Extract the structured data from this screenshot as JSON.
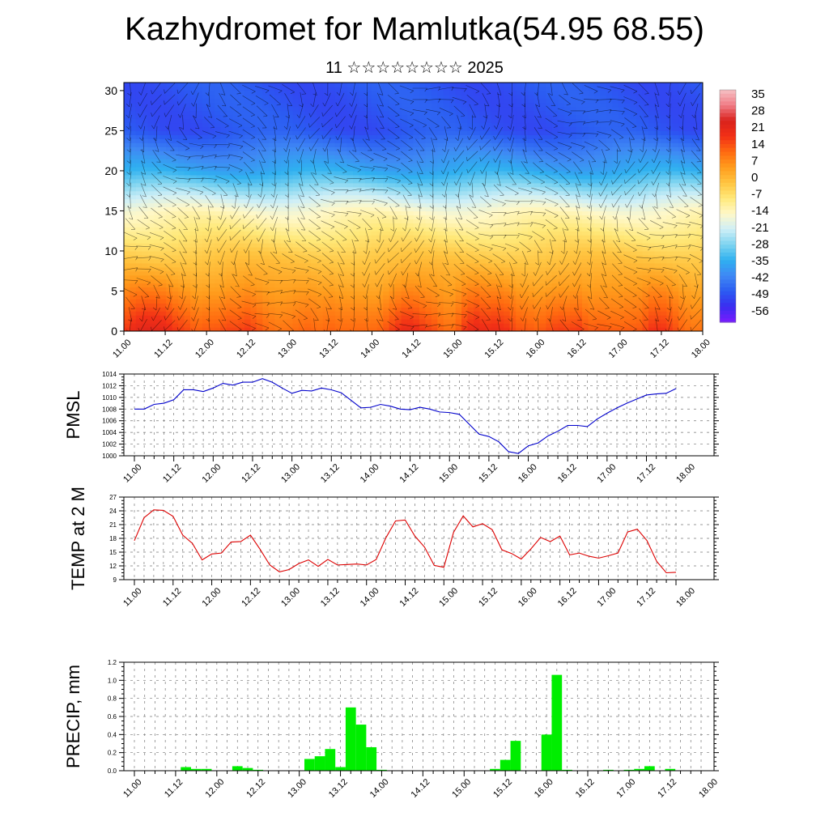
{
  "title": "Kazhydromet for Mamlutka(54.95 68.55)",
  "subtitle": "11 ☆☆☆☆☆☆☆☆ 2025",
  "chart_data": [
    {
      "type": "heatmap",
      "name": "temperature-height-section",
      "x_ticks": [
        "11.00",
        "11.12",
        "12.00",
        "12.12",
        "13.00",
        "13.12",
        "14.00",
        "14.12",
        "15.00",
        "15.12",
        "16.00",
        "16.12",
        "17.00",
        "17.12",
        "18.00"
      ],
      "ylim": [
        0,
        31
      ],
      "y_ticks": [
        0,
        5,
        10,
        15,
        20,
        25,
        30
      ],
      "colorbar": {
        "levels": [
          35,
          28,
          21,
          14,
          7,
          0,
          -7,
          -14,
          -21,
          -28,
          -35,
          -42,
          -49,
          -56
        ],
        "range": [
          -63,
          42
        ],
        "colors": [
          "#7a1cff",
          "#3a2df0",
          "#2b5cf2",
          "#3f88f4",
          "#2fb0f0",
          "#7ed4f0",
          "#cfeff7",
          "#fff8c8",
          "#ffe97a",
          "#ffc440",
          "#ff9c1c",
          "#ff6a10",
          "#f23016",
          "#d9221c",
          "#f07c86",
          "#f6c0c4"
        ]
      },
      "profile_ylevels": [
        0,
        5,
        10,
        15,
        20,
        25,
        31
      ],
      "profile_temps": [
        18,
        8,
        -2,
        -14,
        -36,
        -50,
        -50
      ],
      "surface_temp_key": "temp2m",
      "has_wind_barbs": true
    },
    {
      "type": "line",
      "name": "PMSL",
      "ylabel": "PMSL",
      "ylim": [
        1000,
        1014
      ],
      "y_ticks": [
        1000,
        1002,
        1004,
        1006,
        1008,
        1010,
        1012,
        1014
      ],
      "x_ticks": [
        "11.00",
        "11.12",
        "12.00",
        "12.12",
        "13.00",
        "13.12",
        "14.00",
        "14.12",
        "15.00",
        "15.12",
        "16.00",
        "16.12",
        "17.00",
        "17.12",
        "18.00"
      ],
      "color": "#0000cc",
      "values": [
        1008.0,
        1008.0,
        1008.8,
        1009.0,
        1009.6,
        1011.3,
        1011.3,
        1011.0,
        1011.6,
        1012.4,
        1012.1,
        1012.6,
        1012.6,
        1013.2,
        1012.6,
        1011.6,
        1010.7,
        1011.2,
        1011.1,
        1011.6,
        1011.3,
        1010.8,
        1009.5,
        1008.2,
        1008.3,
        1008.8,
        1008.5,
        1008.0,
        1007.9,
        1008.3,
        1008.0,
        1007.5,
        1007.4,
        1007.1,
        1005.4,
        1003.7,
        1003.3,
        1002.4,
        1000.7,
        1000.4,
        1001.7,
        1002.2,
        1003.4,
        1004.2,
        1005.2,
        1005.2,
        1005.0,
        1006.3,
        1007.3,
        1008.2,
        1009.0,
        1009.7,
        1010.4,
        1010.6,
        1010.7,
        1011.5
      ]
    },
    {
      "type": "line",
      "name": "TEMP at 2 M",
      "ylabel": "TEMP at 2 M",
      "ylim": [
        9,
        27
      ],
      "y_ticks": [
        9,
        12,
        15,
        18,
        21,
        24,
        27
      ],
      "x_ticks": [
        "11.00",
        "11.12",
        "12.00",
        "12.12",
        "13.00",
        "13.12",
        "14.00",
        "14.12",
        "15.00",
        "15.12",
        "16.00",
        "16.12",
        "17.00",
        "17.12",
        "18.00"
      ],
      "color": "#dd0000",
      "values": [
        17.5,
        22.5,
        24.2,
        24.1,
        22.8,
        18.7,
        16.9,
        13.3,
        14.6,
        14.8,
        17.2,
        17.3,
        18.7,
        15.6,
        12.2,
        10.7,
        11.2,
        12.5,
        13.3,
        11.9,
        13.4,
        12.2,
        12.3,
        12.4,
        12.2,
        13.4,
        18.1,
        21.8,
        22.0,
        18.5,
        16.1,
        12.1,
        11.7,
        19.3,
        22.9,
        20.5,
        21.2,
        19.9,
        15.5,
        14.7,
        13.5,
        15.7,
        18.2,
        17.3,
        18.5,
        14.4,
        14.8,
        14.1,
        13.7,
        14.2,
        14.8,
        19.4,
        20.0,
        17.5,
        13.0,
        10.5,
        10.6
      ]
    },
    {
      "type": "bar",
      "name": "PRECIP, mm",
      "ylabel": "PRECIP, mm",
      "ylim": [
        0,
        1.2
      ],
      "y_ticks": [
        "0.0",
        "0.2",
        "0.4",
        "0.6",
        "0.8",
        "1.0",
        "1.2"
      ],
      "x_ticks": [
        "11.00",
        "11.12",
        "12.00",
        "12.12",
        "13.00",
        "13.12",
        "14.00",
        "14.12",
        "15.00",
        "15.12",
        "16.00",
        "16.12",
        "17.00",
        "17.12",
        "18.00"
      ],
      "color": "#00ee00",
      "values": [
        0,
        0,
        0,
        0,
        0,
        0.04,
        0.02,
        0.02,
        0,
        0,
        0.05,
        0.03,
        0.01,
        0,
        0,
        0,
        0,
        0.13,
        0.16,
        0.24,
        0.04,
        0.7,
        0.51,
        0.26,
        0.01,
        0,
        0,
        0,
        0,
        0,
        0,
        0,
        0,
        0,
        0,
        0.02,
        0.12,
        0.33,
        0,
        0,
        0.4,
        1.06,
        0.01,
        0,
        0,
        0,
        0.01,
        0,
        0.01,
        0.02,
        0.05,
        0,
        0.02,
        0,
        0,
        0
      ]
    }
  ]
}
